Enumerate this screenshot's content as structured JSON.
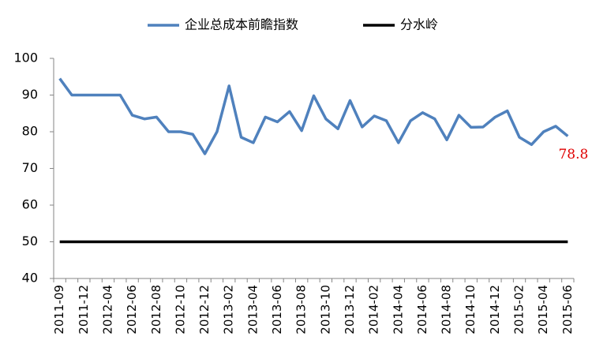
{
  "chart_data": {
    "type": "line",
    "categories": [
      "2011-09",
      null,
      "2011-12",
      null,
      "2012-04",
      null,
      "2012-06",
      null,
      "2012-08",
      null,
      "2012-10",
      null,
      "2012-12",
      null,
      "2013-02",
      null,
      "2013-04",
      null,
      "2013-06",
      null,
      "2013-08",
      null,
      "2013-10",
      null,
      "2013-12",
      null,
      "2014-02",
      null,
      "2014-04",
      null,
      "2014-06",
      null,
      "2014-08",
      null,
      "2014-10",
      null,
      "2014-12",
      null,
      "2015-02",
      null,
      "2015-04",
      null,
      "2015-06"
    ],
    "series": [
      {
        "name": "企业总成本前瞻指数",
        "color": "#4f81bd",
        "values": [
          94.5,
          90,
          90,
          90,
          90,
          90,
          84.5,
          83.5,
          84,
          80,
          80,
          79.3,
          74,
          80,
          92.5,
          78.5,
          77,
          84,
          82.7,
          85.5,
          80.3,
          89.8,
          83.5,
          80.8,
          88.5,
          81.3,
          84.3,
          83,
          77,
          83,
          85.2,
          83.5,
          77.8,
          84.5,
          81.2,
          81.3,
          84,
          85.7,
          78.5,
          76.5,
          80,
          81.5,
          78.8
        ]
      },
      {
        "name": "分水岭",
        "color": "#000000",
        "values": [
          50,
          50,
          50,
          50,
          50,
          50,
          50,
          50,
          50,
          50,
          50,
          50,
          50,
          50,
          50,
          50,
          50,
          50,
          50,
          50,
          50,
          50,
          50,
          50,
          50,
          50,
          50,
          50,
          50,
          50,
          50,
          50,
          50,
          50,
          50,
          50,
          50,
          50,
          50,
          50,
          50,
          50,
          50
        ]
      }
    ],
    "ylim": [
      40,
      100
    ],
    "yticks": [
      40,
      50,
      60,
      70,
      80,
      90,
      100
    ],
    "legend": "top"
  }
}
